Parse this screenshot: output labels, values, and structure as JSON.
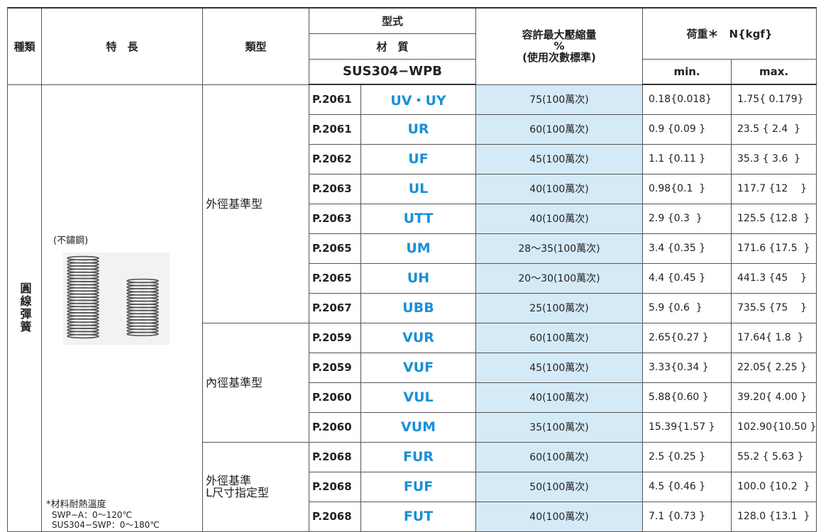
{
  "header": {
    "kind": "種類",
    "feature": "特　長",
    "category": "類型",
    "model": "型式",
    "material": "材　質",
    "material_grade": "SUS304−WPB",
    "compression": [
      "容許最大壓縮量",
      "%",
      "(使用次數標準)"
    ],
    "load": "荷重＊　N{kgf}",
    "min": "min.",
    "max": "max."
  },
  "kind": "圓線彈簧",
  "feature": {
    "material_note": "(不鏽鋼)",
    "temp_title": "*材料耐熱溫度",
    "temp_lines": [
      "SWP−A：0〜120℃",
      "SUS304−SWP：0〜180℃"
    ]
  },
  "groups": [
    {
      "category": [
        "外徑基準型"
      ],
      "rows": [
        [
          "P.2061",
          "UV・UY",
          "75(100萬次)",
          "0.18{0.018}",
          "1.75{ 0.179}"
        ],
        [
          "P.2061",
          "UR",
          "60(100萬次)",
          "0.9 {0.09 }",
          "23.5 { 2.4  }"
        ],
        [
          "P.2062",
          "UF",
          "45(100萬次)",
          "1.1 {0.11 }",
          "35.3 { 3.6  }"
        ],
        [
          "P.2063",
          "UL",
          "40(100萬次)",
          "0.98{0.1  }",
          "117.7 {12    }"
        ],
        [
          "P.2063",
          "UTT",
          "40(100萬次)",
          "2.9 {0.3  }",
          "125.5 {12.8  }"
        ],
        [
          "P.2065",
          "UM",
          "28〜35(100萬次)",
          "3.4 {0.35 }",
          "171.6 {17.5  }"
        ],
        [
          "P.2065",
          "UH",
          "20〜30(100萬次)",
          "4.4 {0.45 }",
          "441.3 {45    }"
        ],
        [
          "P.2067",
          "UBB",
          "25(100萬次)",
          "5.9 {0.6  }",
          "735.5 {75    }"
        ]
      ]
    },
    {
      "category": [
        "內徑基準型"
      ],
      "rows": [
        [
          "P.2059",
          "VUR",
          "60(100萬次)",
          "2.65{0.27 }",
          "17.64{ 1.8  }"
        ],
        [
          "P.2059",
          "VUF",
          "45(100萬次)",
          "3.33{0.34 }",
          "22.05{ 2.25 }"
        ],
        [
          "P.2060",
          "VUL",
          "40(100萬次)",
          "5.88{0.60 }",
          "39.20{ 4.00 }"
        ],
        [
          "P.2060",
          "VUM",
          "35(100萬次)",
          "15.39{1.57 }",
          "102.90{10.50 }"
        ]
      ]
    },
    {
      "category": [
        "外徑基準",
        "L尺寸指定型"
      ],
      "rows": [
        [
          "P.2068",
          "FUR",
          "60(100萬次)",
          "2.5 {0.25 }",
          "55.2 { 5.63 }"
        ],
        [
          "P.2068",
          "FUF",
          "50(100萬次)",
          "4.5 {0.46 }",
          "100.0 {10.2  }"
        ],
        [
          "P.2068",
          "FUT",
          "40(100萬次)",
          "7.1 {0.73 }",
          "128.0 {13.1  }"
        ]
      ]
    }
  ]
}
